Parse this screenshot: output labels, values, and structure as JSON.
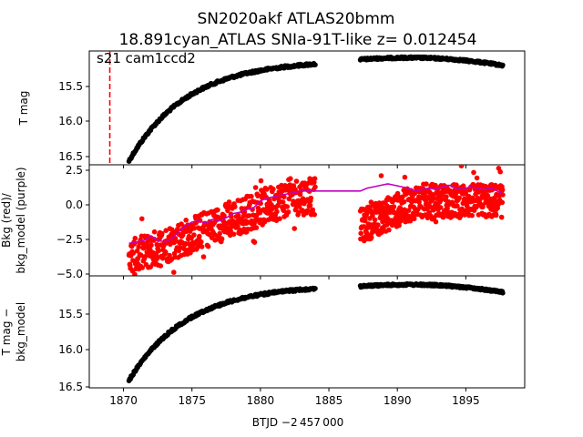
{
  "title_line1": "SN2020akf  ATLAS20bmm",
  "title_line2": "18.891cyan_ATLAS SNIa-91T-like z= 0.012454",
  "annotation": "s21 cam1ccd2",
  "xlabel": "BTJD −2 457 000",
  "colors": {
    "points_black": "#000000",
    "points_red": "#ff0000",
    "model_purple": "#bf00bf",
    "vline": "#ff0000"
  },
  "chart_data": [
    {
      "type": "scatter",
      "name": "top",
      "ylabel": "T mag",
      "xlim": [
        1867.5,
        1899.3
      ],
      "ylim": [
        16.55,
        15.07
      ],
      "inverted_y": true,
      "yticks": [
        "15.5",
        "16.0",
        "16.5"
      ],
      "vline_x": 1869.0,
      "vline_style": "dashed",
      "segments": [
        {
          "x_start": 1870.4,
          "x_end": 1884.0,
          "y_start": 16.5,
          "y_end": 15.24,
          "shape": "rise",
          "color": "#000000"
        },
        {
          "x_start": 1887.3,
          "x_end": 1897.7,
          "y_start": 15.18,
          "y_end": 15.27,
          "shape": "plateau",
          "color": "#000000"
        }
      ]
    },
    {
      "type": "scatter",
      "name": "middle",
      "ylabel": "Bkg (red)/\nbkg_model (purple)",
      "xlim": [
        1867.5,
        1899.3
      ],
      "ylim": [
        -5.0,
        2.85
      ],
      "yticks": [
        "2.5",
        "0.0",
        "−2.5",
        "−5.0"
      ],
      "segments": [
        {
          "x_start": 1870.4,
          "x_end": 1884.0,
          "y_start": -3.8,
          "y_end": 0.6,
          "shape": "noisy-rise",
          "color": "#ff0000"
        },
        {
          "x_start": 1887.3,
          "x_end": 1897.7,
          "y_start": -1.5,
          "y_end": 0.3,
          "shape": "noisy-plateau",
          "color": "#ff0000"
        }
      ],
      "model_line": {
        "x": [
          1870.4,
          1871.0,
          1871.5,
          1872.0,
          1872.5,
          1873.0,
          1873.5,
          1874.0,
          1874.5,
          1875.0,
          1875.5,
          1876.0,
          1876.5,
          1877.0,
          1877.5,
          1878.0,
          1878.5,
          1879.0,
          1879.5,
          1880.0,
          1880.5,
          1881.0,
          1881.5,
          1882.0,
          1882.5,
          1883.0,
          1883.5,
          1884.0,
          1887.3,
          1887.8,
          1888.3,
          1888.8,
          1889.3,
          1889.8,
          1890.3,
          1890.8,
          1891.3,
          1891.8,
          1892.3,
          1892.8,
          1893.3,
          1893.8,
          1894.3,
          1894.8,
          1895.3,
          1895.8,
          1896.3,
          1896.8,
          1897.3,
          1897.7
        ],
        "y": [
          -2.7,
          -2.6,
          -2.5,
          -2.2,
          -2.5,
          -2.6,
          -2.4,
          -1.9,
          -1.5,
          -1.2,
          -1.1,
          -1.3,
          -1.0,
          -1.1,
          -0.9,
          -0.6,
          -0.5,
          -0.3,
          -0.2,
          0.3,
          0.5,
          0.6,
          0.7,
          0.8,
          0.9,
          1.0,
          1.0,
          1.0,
          1.0,
          1.2,
          1.3,
          1.4,
          1.5,
          1.4,
          1.3,
          1.2,
          1.0,
          1.1,
          1.2,
          1.1,
          1.3,
          1.4,
          1.2,
          1.1,
          1.3,
          1.2,
          1.1,
          1.2,
          1.0,
          0.8
        ]
      }
    },
    {
      "type": "scatter",
      "name": "bottom",
      "ylabel": "T mag −\nbkg_model",
      "xlim": [
        1867.5,
        1899.3
      ],
      "ylim": [
        16.55,
        15.05
      ],
      "inverted_y": true,
      "yticks": [
        "15.5",
        "16.0",
        "16.5"
      ],
      "xticks": [
        "1870",
        "1875",
        "1880",
        "1885",
        "1890",
        "1895"
      ],
      "segments": [
        {
          "x_start": 1870.4,
          "x_end": 1884.0,
          "y_start": 16.45,
          "y_end": 15.22,
          "shape": "rise",
          "color": "#000000"
        },
        {
          "x_start": 1887.3,
          "x_end": 1897.7,
          "y_start": 15.19,
          "y_end": 15.28,
          "shape": "plateau",
          "color": "#000000"
        }
      ]
    }
  ]
}
